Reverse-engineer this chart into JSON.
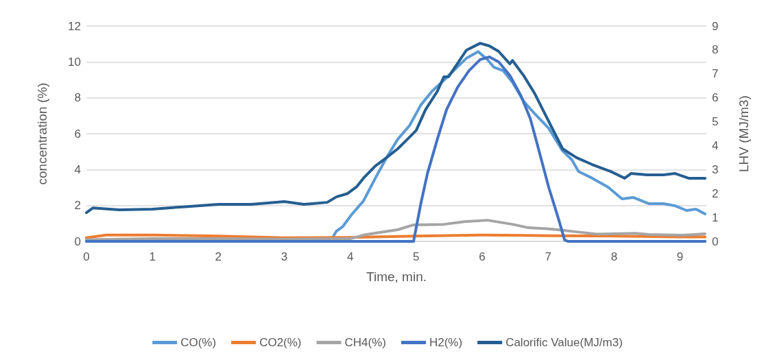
{
  "chart_data": {
    "type": "line",
    "xlabel": "Time, min.",
    "ylabel": "concentration (%)",
    "y2label": "LHV (MJ/m3)",
    "xlim": [
      0,
      9.4
    ],
    "xticks": [
      0,
      1,
      2,
      3,
      4,
      5,
      6,
      7,
      8,
      9
    ],
    "ylim": [
      0,
      12
    ],
    "yticks": [
      0,
      2,
      4,
      6,
      8,
      10,
      12
    ],
    "y2lim": [
      0,
      9
    ],
    "y2ticks": [
      0,
      1,
      2,
      3,
      4,
      5,
      6,
      7,
      8,
      9
    ],
    "grid": "y",
    "legend": "bottom",
    "marker": "none",
    "line_style": "solid",
    "series": [
      {
        "name": "CO(%)",
        "color": "#5b9bd5",
        "x": [
          0,
          1,
          2,
          3,
          3.7,
          3.79,
          3.89,
          4.02,
          4.2,
          4.38,
          4.55,
          4.72,
          4.9,
          5.07,
          5.24,
          5.42,
          5.63,
          5.76,
          5.94,
          6.08,
          6.18,
          6.32,
          6.46,
          6.63,
          6.8,
          7.01,
          7.22,
          7.36,
          7.46,
          7.67,
          7.91,
          8.12,
          8.29,
          8.53,
          8.75,
          8.92,
          9.1,
          9.24,
          9.38
        ],
        "values": [
          0,
          0,
          0,
          0,
          0,
          0.57,
          0.84,
          1.49,
          2.25,
          3.52,
          4.66,
          5.69,
          6.46,
          7.6,
          8.37,
          8.98,
          9.74,
          10.2,
          10.58,
          10.13,
          9.7,
          9.51,
          8.87,
          7.8,
          7.1,
          6.3,
          5.04,
          4.55,
          3.9,
          3.52,
          3.02,
          2.37,
          2.45,
          2.1,
          2.1,
          1.99,
          1.72,
          1.8,
          1.53
        ]
      },
      {
        "name": "CO2(%)",
        "color": "#ed7d31",
        "x": [
          0,
          0.3,
          1,
          2,
          3,
          4,
          5,
          6,
          7,
          8,
          9,
          9.38
        ],
        "values": [
          0.2,
          0.35,
          0.35,
          0.3,
          0.2,
          0.22,
          0.3,
          0.35,
          0.32,
          0.3,
          0.25,
          0.25
        ]
      },
      {
        "name": "CH4(%)",
        "color": "#a5a5a5",
        "x": [
          0,
          1,
          2,
          3,
          4,
          4.2,
          4.38,
          4.72,
          4.96,
          5.42,
          5.73,
          6.08,
          6.46,
          6.7,
          7.01,
          7.15,
          7.43,
          7.74,
          8.33,
          8.53,
          9.04,
          9.38
        ],
        "values": [
          0.1,
          0.15,
          0.15,
          0.12,
          0.15,
          0.35,
          0.46,
          0.65,
          0.92,
          0.95,
          1.1,
          1.18,
          0.95,
          0.76,
          0.7,
          0.65,
          0.53,
          0.4,
          0.45,
          0.38,
          0.34,
          0.42
        ]
      },
      {
        "name": "H2(%)",
        "color": "#4472c4",
        "x": [
          0,
          1,
          2,
          3,
          4,
          4.96,
          5.07,
          5.17,
          5.32,
          5.46,
          5.63,
          5.8,
          5.97,
          6.11,
          6.25,
          6.42,
          6.59,
          6.73,
          6.8,
          7.01,
          7.15,
          7.25,
          7.3,
          8,
          9,
          9.38
        ],
        "values": [
          0,
          0,
          0,
          0,
          0,
          0,
          2.1,
          3.78,
          5.69,
          7.34,
          8.6,
          9.51,
          10.13,
          10.28,
          10.0,
          9.25,
          8.1,
          6.84,
          5.9,
          3.0,
          1.34,
          0.08,
          0,
          0,
          0,
          0
        ]
      },
      {
        "name": "Calorific Value(MJ/m3)",
        "color": "#255e91",
        "axis": "y2",
        "x": [
          0,
          0.1,
          0.5,
          1,
          1.5,
          2,
          2.5,
          3,
          3.3,
          3.65,
          3.79,
          3.96,
          4.1,
          4.2,
          4.38,
          4.55,
          4.72,
          4.9,
          5.0,
          5.14,
          5.32,
          5.42,
          5.49,
          5.63,
          5.76,
          5.97,
          6.11,
          6.25,
          6.42,
          6.46,
          6.63,
          6.8,
          7.01,
          7.22,
          7.43,
          7.67,
          7.95,
          8.16,
          8.26,
          8.5,
          8.75,
          8.92,
          9.13,
          9.38
        ],
        "values": [
          1.2,
          1.4,
          1.32,
          1.35,
          1.45,
          1.55,
          1.55,
          1.66,
          1.55,
          1.63,
          1.86,
          2.0,
          2.29,
          2.64,
          3.15,
          3.5,
          3.87,
          4.36,
          4.64,
          5.5,
          6.27,
          6.88,
          6.88,
          7.45,
          7.99,
          8.28,
          8.17,
          7.94,
          7.42,
          7.56,
          6.93,
          6.16,
          5.01,
          3.87,
          3.5,
          3.21,
          2.92,
          2.64,
          2.84,
          2.78,
          2.78,
          2.84,
          2.64,
          2.64
        ]
      }
    ]
  }
}
